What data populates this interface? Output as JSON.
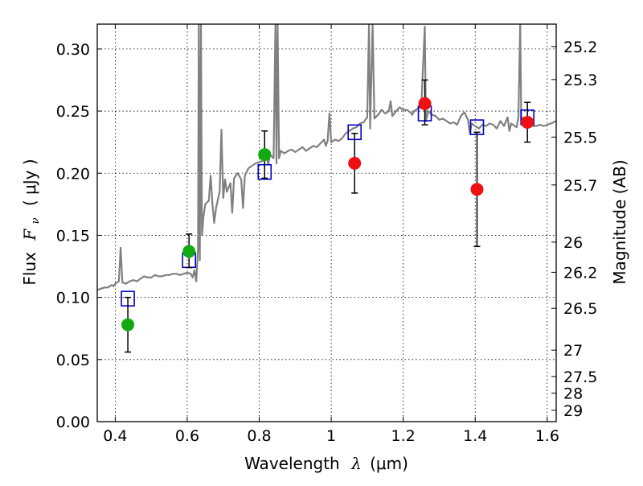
{
  "chart_data": {
    "type": "scatter",
    "title": "",
    "xlabel_prefix": "Wavelength",
    "xlabel_math": "λ",
    "xlabel_suffix": "(μm)",
    "ylabel_prefix": "Flux",
    "ylabel_math": "F",
    "ylabel_sub": "ν",
    "ylabel_suffix": "( μJy )",
    "y2label": "Magnitude (AB)",
    "xlim": [
      0.35,
      1.625
    ],
    "ylim": [
      0.0,
      0.32
    ],
    "grid": true,
    "x_ticks": [
      {
        "v": 0.4,
        "label": "0.4"
      },
      {
        "v": 0.6,
        "label": "0.6"
      },
      {
        "v": 0.8,
        "label": "0.8"
      },
      {
        "v": 1.0,
        "label": "1"
      },
      {
        "v": 1.2,
        "label": "1.2"
      },
      {
        "v": 1.4,
        "label": "1.4"
      },
      {
        "v": 1.6,
        "label": "1.6"
      }
    ],
    "y_ticks": [
      {
        "v": 0.0,
        "label": "0.00"
      },
      {
        "v": 0.05,
        "label": "0.05"
      },
      {
        "v": 0.1,
        "label": "0.10"
      },
      {
        "v": 0.15,
        "label": "0.15"
      },
      {
        "v": 0.2,
        "label": "0.20"
      },
      {
        "v": 0.25,
        "label": "0.25"
      },
      {
        "v": 0.3,
        "label": "0.30"
      }
    ],
    "mag_ticks": [
      {
        "v": 25.2,
        "label": "25.2"
      },
      {
        "v": 25.3,
        "label": "25.3"
      },
      {
        "v": 25.5,
        "label": "25.5"
      },
      {
        "v": 25.7,
        "label": "25.7"
      },
      {
        "v": 26,
        "label": "26"
      },
      {
        "v": 26.2,
        "label": "26.2"
      },
      {
        "v": 26.5,
        "label": "26.5"
      },
      {
        "v": 27,
        "label": "27"
      },
      {
        "v": 27.5,
        "label": "27.5"
      },
      {
        "v": 28,
        "label": "28"
      },
      {
        "v": 29,
        "label": "29"
      }
    ],
    "colors": {
      "model": "#808080",
      "model_points": "#0000cc",
      "green": "#11aa11",
      "red": "#ee1111",
      "errorbar": "#000000",
      "grid": "#000000"
    },
    "model_spectrum": [
      [
        0.35,
        0.106
      ],
      [
        0.36,
        0.107
      ],
      [
        0.37,
        0.108
      ],
      [
        0.38,
        0.108
      ],
      [
        0.39,
        0.11
      ],
      [
        0.395,
        0.109
      ],
      [
        0.4,
        0.111
      ],
      [
        0.405,
        0.112
      ],
      [
        0.41,
        0.113
      ],
      [
        0.415,
        0.14
      ],
      [
        0.42,
        0.112
      ],
      [
        0.43,
        0.111
      ],
      [
        0.44,
        0.113
      ],
      [
        0.45,
        0.114
      ],
      [
        0.46,
        0.113
      ],
      [
        0.47,
        0.115
      ],
      [
        0.48,
        0.117
      ],
      [
        0.49,
        0.116
      ],
      [
        0.5,
        0.116
      ],
      [
        0.51,
        0.118
      ],
      [
        0.52,
        0.117
      ],
      [
        0.53,
        0.117
      ],
      [
        0.54,
        0.118
      ],
      [
        0.55,
        0.118
      ],
      [
        0.56,
        0.119
      ],
      [
        0.57,
        0.119
      ],
      [
        0.58,
        0.118
      ],
      [
        0.59,
        0.119
      ],
      [
        0.6,
        0.12
      ],
      [
        0.61,
        0.119
      ],
      [
        0.615,
        0.116
      ],
      [
        0.62,
        0.122
      ],
      [
        0.625,
        0.113
      ],
      [
        0.63,
        0.14
      ],
      [
        0.632,
        0.32
      ],
      [
        0.635,
        0.13
      ],
      [
        0.638,
        0.32
      ],
      [
        0.641,
        0.15
      ],
      [
        0.645,
        0.165
      ],
      [
        0.65,
        0.175
      ],
      [
        0.66,
        0.178
      ],
      [
        0.665,
        0.198
      ],
      [
        0.67,
        0.175
      ],
      [
        0.675,
        0.16
      ],
      [
        0.68,
        0.172
      ],
      [
        0.69,
        0.185
      ],
      [
        0.695,
        0.235
      ],
      [
        0.7,
        0.18
      ],
      [
        0.705,
        0.195
      ],
      [
        0.71,
        0.185
      ],
      [
        0.72,
        0.192
      ],
      [
        0.725,
        0.168
      ],
      [
        0.73,
        0.196
      ],
      [
        0.74,
        0.2
      ],
      [
        0.75,
        0.195
      ],
      [
        0.755,
        0.172
      ],
      [
        0.76,
        0.198
      ],
      [
        0.77,
        0.204
      ],
      [
        0.78,
        0.206
      ],
      [
        0.79,
        0.208
      ],
      [
        0.8,
        0.209
      ],
      [
        0.81,
        0.21
      ],
      [
        0.82,
        0.215
      ],
      [
        0.825,
        0.207
      ],
      [
        0.83,
        0.215
      ],
      [
        0.84,
        0.212
      ],
      [
        0.845,
        0.32
      ],
      [
        0.848,
        0.208
      ],
      [
        0.851,
        0.32
      ],
      [
        0.855,
        0.212
      ],
      [
        0.86,
        0.218
      ],
      [
        0.87,
        0.216
      ],
      [
        0.88,
        0.218
      ],
      [
        0.89,
        0.219
      ],
      [
        0.9,
        0.217
      ],
      [
        0.91,
        0.219
      ],
      [
        0.92,
        0.221
      ],
      [
        0.93,
        0.218
      ],
      [
        0.94,
        0.22
      ],
      [
        0.95,
        0.222
      ],
      [
        0.96,
        0.221
      ],
      [
        0.97,
        0.224
      ],
      [
        0.98,
        0.227
      ],
      [
        0.985,
        0.222
      ],
      [
        0.99,
        0.226
      ],
      [
        0.995,
        0.248
      ],
      [
        1.0,
        0.225
      ],
      [
        1.01,
        0.227
      ],
      [
        1.02,
        0.226
      ],
      [
        1.03,
        0.228
      ],
      [
        1.04,
        0.232
      ],
      [
        1.05,
        0.234
      ],
      [
        1.06,
        0.236
      ],
      [
        1.07,
        0.237
      ],
      [
        1.08,
        0.24
      ],
      [
        1.09,
        0.241
      ],
      [
        1.1,
        0.245
      ],
      [
        1.105,
        0.32
      ],
      [
        1.108,
        0.236
      ],
      [
        1.115,
        0.32
      ],
      [
        1.12,
        0.244
      ],
      [
        1.13,
        0.247
      ],
      [
        1.14,
        0.251
      ],
      [
        1.15,
        0.248
      ],
      [
        1.16,
        0.25
      ],
      [
        1.165,
        0.258
      ],
      [
        1.17,
        0.246
      ],
      [
        1.18,
        0.25
      ],
      [
        1.19,
        0.253
      ],
      [
        1.2,
        0.251
      ],
      [
        1.21,
        0.251
      ],
      [
        1.22,
        0.249
      ],
      [
        1.225,
        0.247
      ],
      [
        1.23,
        0.25
      ],
      [
        1.24,
        0.252
      ],
      [
        1.25,
        0.253
      ],
      [
        1.26,
        0.318
      ],
      [
        1.263,
        0.242
      ],
      [
        1.27,
        0.25
      ],
      [
        1.28,
        0.247
      ],
      [
        1.29,
        0.246
      ],
      [
        1.3,
        0.243
      ],
      [
        1.31,
        0.244
      ],
      [
        1.32,
        0.242
      ],
      [
        1.33,
        0.24
      ],
      [
        1.34,
        0.241
      ],
      [
        1.35,
        0.239
      ],
      [
        1.36,
        0.246
      ],
      [
        1.37,
        0.249
      ],
      [
        1.38,
        0.243
      ],
      [
        1.385,
        0.232
      ],
      [
        1.39,
        0.24
      ],
      [
        1.4,
        0.238
      ],
      [
        1.41,
        0.236
      ],
      [
        1.42,
        0.239
      ],
      [
        1.43,
        0.238
      ],
      [
        1.44,
        0.24
      ],
      [
        1.45,
        0.239
      ],
      [
        1.46,
        0.236
      ],
      [
        1.47,
        0.242
      ],
      [
        1.48,
        0.238
      ],
      [
        1.49,
        0.245
      ],
      [
        1.495,
        0.234
      ],
      [
        1.5,
        0.24
      ],
      [
        1.51,
        0.238
      ],
      [
        1.515,
        0.237
      ],
      [
        1.52,
        0.245
      ],
      [
        1.525,
        0.32
      ],
      [
        1.528,
        0.24
      ],
      [
        1.53,
        0.245
      ],
      [
        1.54,
        0.24
      ],
      [
        1.55,
        0.239
      ],
      [
        1.56,
        0.238
      ],
      [
        1.57,
        0.238
      ],
      [
        1.58,
        0.239
      ],
      [
        1.59,
        0.238
      ],
      [
        1.6,
        0.239
      ],
      [
        1.61,
        0.24
      ],
      [
        1.625,
        0.242
      ]
    ],
    "model_points": [
      {
        "x": 0.435,
        "y": 0.099
      },
      {
        "x": 0.605,
        "y": 0.13
      },
      {
        "x": 0.815,
        "y": 0.201
      },
      {
        "x": 1.065,
        "y": 0.233
      },
      {
        "x": 1.26,
        "y": 0.248
      },
      {
        "x": 1.405,
        "y": 0.237
      },
      {
        "x": 1.545,
        "y": 0.245
      }
    ],
    "observed_green": [
      {
        "x": 0.435,
        "y": 0.078,
        "err_low": 0.056,
        "err_high": 0.1
      },
      {
        "x": 0.605,
        "y": 0.137,
        "err_low": 0.124,
        "err_high": 0.151
      },
      {
        "x": 0.815,
        "y": 0.215,
        "err_low": 0.196,
        "err_high": 0.234
      }
    ],
    "observed_red": [
      {
        "x": 1.065,
        "y": 0.208,
        "err_low": 0.184,
        "err_high": 0.232
      },
      {
        "x": 1.26,
        "y": 0.256,
        "err_low": 0.239,
        "err_high": 0.275
      },
      {
        "x": 1.405,
        "y": 0.187,
        "err_low": 0.141,
        "err_high": 0.233
      },
      {
        "x": 1.545,
        "y": 0.241,
        "err_low": 0.225,
        "err_high": 0.257
      }
    ]
  }
}
